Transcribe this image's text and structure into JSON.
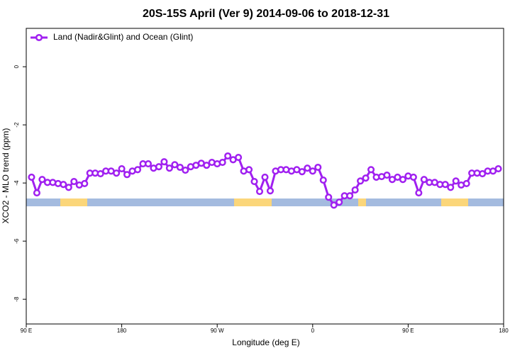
{
  "chart_data": {
    "type": "line",
    "title": "20S-15S April (Ver 9)   2014-09-06 to 2018-12-31",
    "x_label": "Longitude (deg E)",
    "y_label": "XCO2 - MLO trend (ppm)",
    "x": [
      95,
      100,
      105,
      110,
      115,
      120,
      125,
      130,
      135,
      140,
      145,
      150,
      155,
      160,
      165,
      170,
      175,
      180,
      185,
      190,
      195,
      200,
      205,
      210,
      215,
      220,
      225,
      230,
      235,
      240,
      245,
      250,
      255,
      260,
      265,
      270,
      275,
      280,
      285,
      290,
      295,
      300,
      305,
      310,
      315,
      320,
      325,
      330,
      335,
      340,
      345,
      350,
      355,
      360,
      365,
      370,
      375,
      380,
      385,
      390,
      395,
      400,
      405,
      410,
      415,
      420,
      425,
      430,
      435,
      440,
      445,
      450,
      455,
      460,
      465,
      470,
      475,
      480,
      485,
      490,
      495,
      500,
      505,
      510,
      515,
      520,
      525,
      530,
      535
    ],
    "series": [
      {
        "name": "Land (Nadir&Glint) and Ocean (Glint)",
        "color": "#a020f0",
        "values": [
          -3.8,
          -4.34,
          -3.88,
          -3.98,
          -3.98,
          -4.02,
          -4.05,
          -4.15,
          -3.95,
          -4.07,
          -4.02,
          -3.66,
          -3.66,
          -3.68,
          -3.59,
          -3.59,
          -3.66,
          -3.51,
          -3.71,
          -3.59,
          -3.54,
          -3.34,
          -3.34,
          -3.49,
          -3.44,
          -3.27,
          -3.49,
          -3.37,
          -3.46,
          -3.56,
          -3.44,
          -3.39,
          -3.32,
          -3.39,
          -3.29,
          -3.34,
          -3.29,
          -3.07,
          -3.2,
          -3.12,
          -3.59,
          -3.54,
          -3.95,
          -4.29,
          -3.8,
          -4.27,
          -3.59,
          -3.54,
          -3.54,
          -3.59,
          -3.54,
          -3.61,
          -3.49,
          -3.59,
          -3.46,
          -3.9,
          -4.49,
          -4.76,
          -4.66,
          -4.44,
          -4.44,
          -4.24,
          -3.93,
          -3.83,
          -3.54,
          -3.8,
          -3.78,
          -3.73,
          -3.88,
          -3.8,
          -3.88,
          -3.76,
          -3.8,
          -4.34,
          -3.88,
          -3.98,
          -3.98,
          -4.05,
          -4.05,
          -4.15,
          -3.93,
          -4.07,
          -4.02,
          -3.66,
          -3.66,
          -3.68,
          -3.59,
          -3.59,
          -3.51
        ]
      }
    ],
    "xlim": [
      90,
      540
    ],
    "ylim": [
      1.32,
      -8.85
    ],
    "xticks": [
      {
        "value": 90,
        "label": "90 E"
      },
      180,
      {
        "value": 270,
        "label": "90 W"
      },
      {
        "value": 360,
        "label": "0"
      },
      {
        "value": 450,
        "label": "90 E"
      },
      {
        "value": 540,
        "label": "180"
      }
    ],
    "yticks": [
      0,
      -2,
      -4,
      -6,
      -8
    ],
    "legend": "top-left"
  }
}
